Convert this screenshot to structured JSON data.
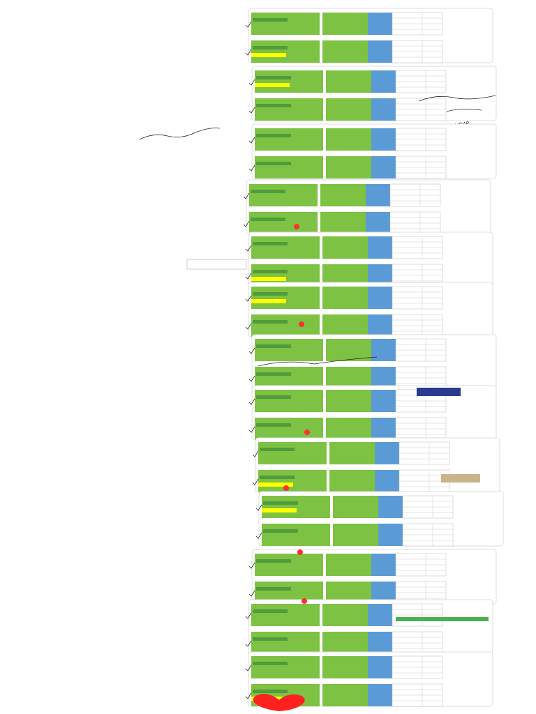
{
  "annotations": [
    "LIDAR"
  ]
}
